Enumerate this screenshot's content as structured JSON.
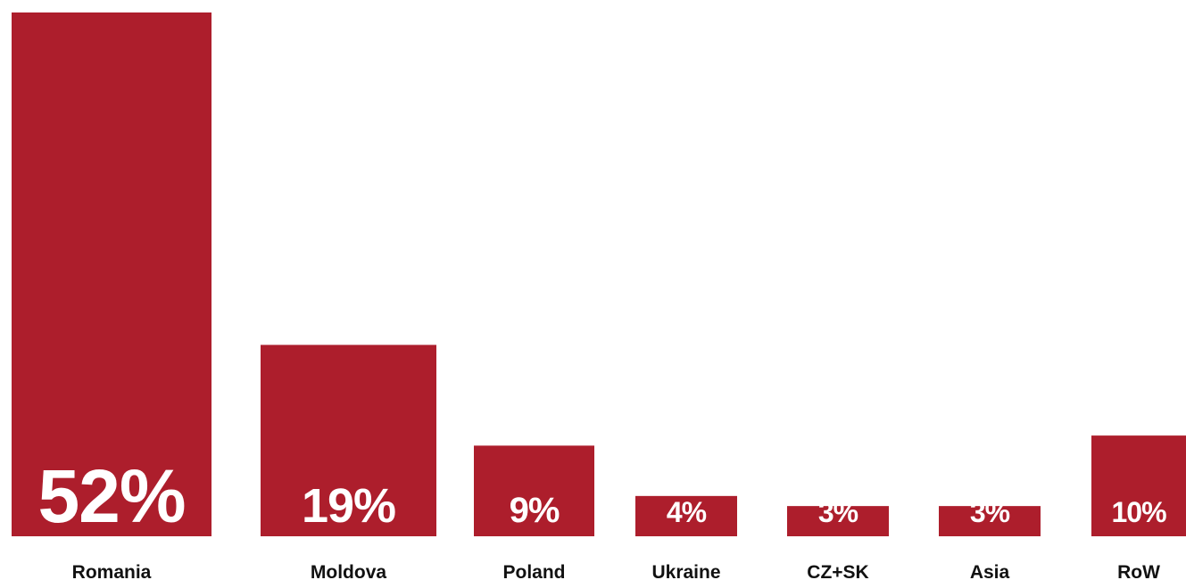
{
  "chart_data": {
    "type": "bar",
    "categories": [
      "Romania",
      "Moldova",
      "Poland",
      "Ukraine",
      "CZ+SK",
      "Asia",
      "RoW"
    ],
    "values": [
      52,
      19,
      9,
      4,
      3,
      3,
      10
    ],
    "value_labels": [
      "52%",
      "19%",
      "9%",
      "4%",
      "3%",
      "3%",
      "10%"
    ],
    "unit": "%",
    "ylim": [
      0,
      52
    ],
    "title": "",
    "xlabel": "",
    "ylabel": "",
    "grid": false,
    "legend": "none",
    "colors": {
      "bar": "#AD1E2C",
      "value_text": "#FFFFFF",
      "category_text": "#111111"
    }
  }
}
